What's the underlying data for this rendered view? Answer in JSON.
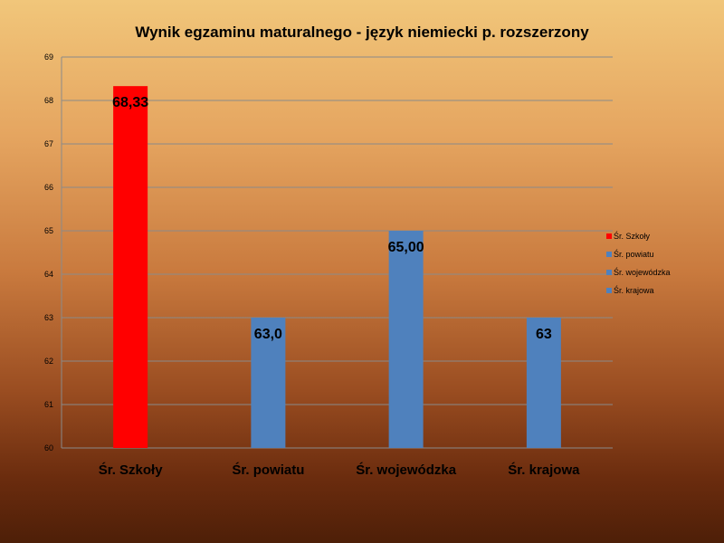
{
  "chart_data": {
    "type": "bar",
    "title": "Wynik egzaminu maturalnego - język niemiecki p. rozszerzony",
    "categories": [
      "Śr. Szkoły",
      "Śr. powiatu",
      "Śr. wojewódzka",
      "Śr. krajowa"
    ],
    "values": [
      68.33,
      63.0,
      65.0,
      63
    ],
    "data_labels": [
      "68,33",
      "63,0",
      "65,00",
      "63"
    ],
    "colors": [
      "#ff0000",
      "#4f81bd",
      "#4f81bd",
      "#4f81bd"
    ],
    "ylim": [
      60,
      69
    ],
    "yticks": [
      "60",
      "61",
      "62",
      "63",
      "64",
      "65",
      "66",
      "67",
      "68",
      "69"
    ],
    "grid": true,
    "legend": {
      "placement": "right",
      "entries": [
        "Śr. Szkoły",
        "Śr. powiatu",
        "Śr. wojewódzka",
        "Śr. krajowa"
      ]
    }
  }
}
